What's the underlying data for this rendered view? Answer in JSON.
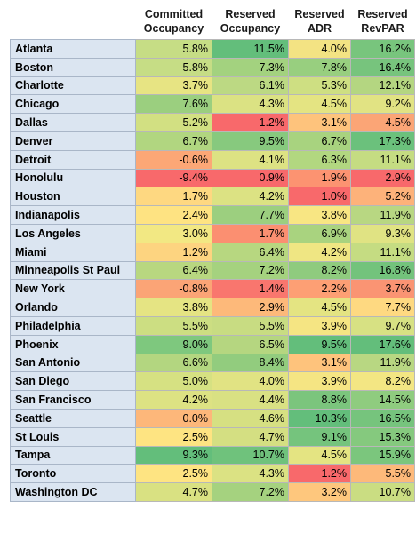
{
  "headers": [
    {
      "line1": "",
      "line2": ""
    },
    {
      "line1": "Committed",
      "line2": "Occupancy"
    },
    {
      "line1": "Reserved",
      "line2": "Occupancy"
    },
    {
      "line1": "Reserved",
      "line2": "ADR"
    },
    {
      "line1": "Reserved",
      "line2": "RevPAR"
    }
  ],
  "rows": [
    {
      "city": "Atlanta",
      "values": [
        "5.8%",
        "11.5%",
        "4.0%",
        "16.2%"
      ],
      "colors": [
        "#c6dd85",
        "#63be7b",
        "#f3e383",
        "#78c57d"
      ]
    },
    {
      "city": "Boston",
      "values": [
        "5.8%",
        "7.3%",
        "7.8%",
        "16.4%"
      ],
      "colors": [
        "#c6dd85",
        "#a3d27f",
        "#98cf7f",
        "#77c47d"
      ]
    },
    {
      "city": "Charlotte",
      "values": [
        "3.7%",
        "6.1%",
        "5.3%",
        "12.1%"
      ],
      "colors": [
        "#e7e483",
        "#bcd983",
        "#cedf82",
        "#b4d681"
      ]
    },
    {
      "city": "Chicago",
      "values": [
        "7.6%",
        "4.3%",
        "4.5%",
        "9.2%"
      ],
      "colors": [
        "#9bcf7f",
        "#dbe283",
        "#e4e482",
        "#e1e383"
      ]
    },
    {
      "city": "Dallas",
      "values": [
        "5.2%",
        "1.2%",
        "3.1%",
        "4.5%"
      ],
      "colors": [
        "#d2e082",
        "#f8696b",
        "#fec37c",
        "#fba576"
      ]
    },
    {
      "city": "Denver",
      "values": [
        "6.7%",
        "9.5%",
        "6.7%",
        "17.3%"
      ],
      "colors": [
        "#b1d680",
        "#87c97e",
        "#a8d37f",
        "#6bc17c"
      ]
    },
    {
      "city": "Detroit",
      "values": [
        "-0.6%",
        "4.1%",
        "6.3%",
        "11.1%"
      ],
      "colors": [
        "#fca776",
        "#dde283",
        "#b2d780",
        "#c5dc82"
      ]
    },
    {
      "city": "Honolulu",
      "values": [
        "-9.4%",
        "0.9%",
        "1.9%",
        "2.9%"
      ],
      "colors": [
        "#f8696b",
        "#f8696b",
        "#fc9371",
        "#f8696b"
      ]
    },
    {
      "city": "Houston",
      "values": [
        "1.7%",
        "4.2%",
        "1.0%",
        "5.2%"
      ],
      "colors": [
        "#fed881",
        "#dce283",
        "#f8696b",
        "#fdb27a"
      ]
    },
    {
      "city": "Indianapolis",
      "values": [
        "2.4%",
        "7.7%",
        "3.8%",
        "11.9%"
      ],
      "colors": [
        "#fee382",
        "#9ccf7f",
        "#f8e683",
        "#b8d782"
      ]
    },
    {
      "city": "Los Angeles",
      "values": [
        "3.0%",
        "1.7%",
        "6.9%",
        "9.3%"
      ],
      "colors": [
        "#f2e883",
        "#fb8f71",
        "#a9d37f",
        "#e0e383"
      ]
    },
    {
      "city": "Miami",
      "values": [
        "1.2%",
        "6.4%",
        "4.2%",
        "11.1%"
      ],
      "colors": [
        "#fdd480",
        "#b7d780",
        "#efe683",
        "#c5dc82"
      ]
    },
    {
      "city": "Minneapolis St Paul",
      "values": [
        "6.4%",
        "7.2%",
        "8.2%",
        "16.8%"
      ],
      "colors": [
        "#b8d780",
        "#a5d27f",
        "#8fcb7e",
        "#73c37c"
      ]
    },
    {
      "city": "New York",
      "values": [
        "-0.8%",
        "1.4%",
        "2.2%",
        "3.7%"
      ],
      "colors": [
        "#fba476",
        "#f9766e",
        "#fd9f74",
        "#fa9473"
      ]
    },
    {
      "city": "Orlando",
      "values": [
        "3.8%",
        "2.9%",
        "4.5%",
        "7.7%"
      ],
      "colors": [
        "#e5e483",
        "#fdb97a",
        "#e4e482",
        "#fed981"
      ]
    },
    {
      "city": "Philadelphia",
      "values": [
        "5.5%",
        "5.5%",
        "3.9%",
        "9.7%"
      ],
      "colors": [
        "#ccde82",
        "#c8dc82",
        "#f5e583",
        "#d7e183"
      ]
    },
    {
      "city": "Phoenix",
      "values": [
        "9.0%",
        "6.5%",
        "9.5%",
        "17.6%"
      ],
      "colors": [
        "#7ec87e",
        "#b5d680",
        "#63be7b",
        "#63be7b"
      ]
    },
    {
      "city": "San Antonio",
      "values": [
        "6.6%",
        "8.4%",
        "3.1%",
        "11.9%"
      ],
      "colors": [
        "#b3d680",
        "#92cc7e",
        "#fec37c",
        "#b8d782"
      ]
    },
    {
      "city": "San Diego",
      "values": [
        "5.0%",
        "4.0%",
        "3.9%",
        "8.2%"
      ],
      "colors": [
        "#d6e182",
        "#e1e383",
        "#f5e583",
        "#f3e683"
      ]
    },
    {
      "city": "San Francisco",
      "values": [
        "4.2%",
        "4.4%",
        "8.8%",
        "14.5%"
      ],
      "colors": [
        "#ddE283",
        "#d9e183",
        "#7bc57d",
        "#8fcc7f"
      ]
    },
    {
      "city": "Seattle",
      "values": [
        "0.0%",
        "4.6%",
        "10.3%",
        "16.5%"
      ],
      "colors": [
        "#fdb77a",
        "#d6e082",
        "#63be7b",
        "#76c47d"
      ]
    },
    {
      "city": "St Louis",
      "values": [
        "2.5%",
        "4.7%",
        "9.1%",
        "15.3%"
      ],
      "colors": [
        "#fee482",
        "#d4df82",
        "#75c47d",
        "#85c97e"
      ]
    },
    {
      "city": "Tampa",
      "values": [
        "9.3%",
        "10.7%",
        "4.5%",
        "15.9%"
      ],
      "colors": [
        "#63be7b",
        "#6fc27c",
        "#e4e482",
        "#7bc67d"
      ]
    },
    {
      "city": "Toronto",
      "values": [
        "2.5%",
        "4.3%",
        "1.2%",
        "5.5%"
      ],
      "colors": [
        "#fee482",
        "#dbe283",
        "#f8696b",
        "#fdb97a"
      ]
    },
    {
      "city": "Washington DC",
      "values": [
        "4.7%",
        "7.2%",
        "3.2%",
        "10.7%"
      ],
      "colors": [
        "#d9e182",
        "#a5d27f",
        "#fec77d",
        "#cadd82"
      ]
    }
  ]
}
